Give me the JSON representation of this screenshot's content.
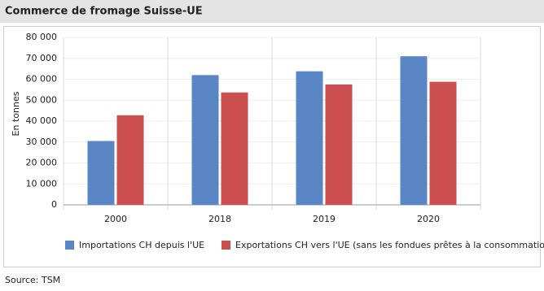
{
  "chart_data": {
    "type": "bar",
    "title": "Commerce de fromage Suisse-UE",
    "y_label": "En tonnes",
    "categories": [
      "2000",
      "2018",
      "2019",
      "2020"
    ],
    "series": [
      {
        "name": "Importations CH depuis l'UE",
        "color": "#5b86c6",
        "values": [
          30500,
          62000,
          63800,
          71000
        ]
      },
      {
        "name": "Exportations CH vers l'UE (sans les fondues prêtes à la consommation)",
        "color": "#cb4f4f",
        "values": [
          42800,
          53700,
          57500,
          58800
        ]
      }
    ],
    "ylim": [
      0,
      80000
    ],
    "yticks": [
      0,
      {
        "value": 10000,
        "label": "10 000"
      },
      {
        "value": 20000,
        "label": "20 000"
      },
      {
        "value": 30000,
        "label": "30 000"
      },
      {
        "value": 40000,
        "label": "40 000"
      },
      {
        "value": 50000,
        "label": "50 000"
      },
      {
        "value": 60000,
        "label": "60 000"
      },
      {
        "value": 70000,
        "label": "70 000"
      },
      {
        "value": 80000,
        "label": "80 000"
      }
    ],
    "grid": true,
    "source": "Source: TSM"
  }
}
